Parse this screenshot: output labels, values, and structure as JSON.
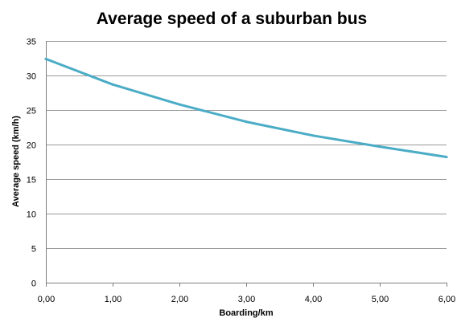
{
  "chart_data": {
    "type": "line",
    "title": "Average speed of a suburban bus",
    "xlabel": "Boarding/km",
    "ylabel": "Average speed  (km/h)",
    "xlim": [
      0,
      6
    ],
    "ylim": [
      0,
      35
    ],
    "x_ticks": [
      "0,00",
      "1,00",
      "2,00",
      "3,00",
      "4,00",
      "5,00",
      "6,00"
    ],
    "y_ticks": [
      "0",
      "5",
      "10",
      "15",
      "20",
      "25",
      "30",
      "35"
    ],
    "grid": true,
    "legend": "none",
    "series": [
      {
        "color": "#4bacc6",
        "x": [
          0,
          1,
          2,
          3,
          4,
          5,
          6
        ],
        "values": [
          32.4,
          28.7,
          25.8,
          23.3,
          21.3,
          19.7,
          18.2
        ]
      }
    ]
  }
}
